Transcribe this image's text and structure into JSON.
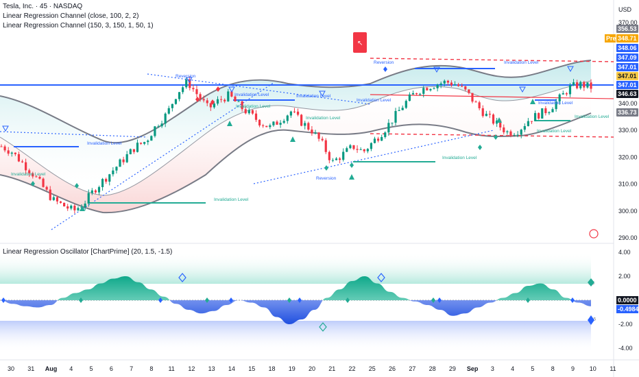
{
  "header": {
    "symbol_line": "Tesla, Inc. · 45 · NASDAQ",
    "indicator_1": "Linear Regression Channel (close, 100, 2, 2)",
    "indicator_2": "Linear Regression Channel (150, 3, 150, 1, 50, 1)"
  },
  "currency": "USD",
  "oscillator_title": "Linear Regression Oscillator [ChartPrime] (20, 1.5, -1.5)",
  "colors": {
    "up": "#089981",
    "down": "#f23645",
    "teal": "#22ab94",
    "blue": "#2962ff",
    "red_line": "#f23645",
    "grey_band": "#787b86"
  },
  "chart_data": [
    {
      "type": "candlestick",
      "ylim": [
        290,
        370
      ],
      "y_ticks": [
        290,
        300,
        310,
        320,
        330,
        340,
        350,
        360,
        370
      ],
      "y_tick_labels": [
        "290.00",
        "300.00",
        "310.00",
        "320.00",
        "330.00",
        "340.00",
        "350.00",
        "360.00",
        "370.00"
      ],
      "x_tick_labels": [
        "30",
        "31",
        "Aug",
        "4",
        "5",
        "6",
        "7",
        "8",
        "11",
        "12",
        "13",
        "14",
        "15",
        "18",
        "19",
        "20",
        "21",
        "22",
        "25",
        "26",
        "27",
        "28",
        "29",
        "Sep",
        "3",
        "4",
        "5",
        "8",
        "9",
        "10",
        "11"
      ],
      "close_path": [
        324,
        322,
        318,
        314,
        309,
        304,
        302,
        300,
        303,
        308,
        312,
        316,
        320,
        324,
        326,
        332,
        336,
        344,
        348,
        343,
        338,
        341,
        343,
        339,
        336,
        333,
        331,
        334,
        337,
        333,
        330,
        325,
        318,
        321,
        324,
        322,
        326,
        330,
        335,
        340,
        344,
        346,
        347,
        348,
        347,
        344,
        339,
        335,
        332,
        329,
        330,
        334,
        336,
        338,
        342,
        346,
        347,
        346
      ],
      "price_tags": [
        {
          "label": "356.53",
          "value": 356.53,
          "color": "#787b86"
        },
        {
          "label": "348.71",
          "value": 348.71,
          "color": "#f7a600",
          "prefix": "Pre"
        },
        {
          "label": "348.06",
          "value": 348.06,
          "color": "#2962ff"
        },
        {
          "label": "347.09",
          "value": 347.09,
          "color": "#2962ff"
        },
        {
          "label": "347.01",
          "value": 347.01,
          "color": "#2962ff"
        },
        {
          "label": "347.01",
          "value": 346.5,
          "color": "#f7c948"
        },
        {
          "label": "347.01",
          "value": 345.9,
          "color": "#2962ff"
        },
        {
          "label": "346.63",
          "value": 344.0,
          "color": "#131722"
        },
        {
          "label": "336.73",
          "value": 336.73,
          "color": "#787b86"
        }
      ],
      "annotations": [
        "Reversion",
        "Reversion",
        "Reversion",
        "Invalidation Level"
      ]
    },
    {
      "type": "area",
      "title": "Linear Regression Oscillator [ChartPrime] (20, 1.5, -1.5)",
      "ylim": [
        -4,
        4
      ],
      "y_ticks": [
        4,
        2,
        0,
        -2,
        -4
      ],
      "y_tick_labels": [
        "4.00",
        "2.00",
        "0.0000",
        "-2.00",
        "-4.00"
      ],
      "current_values": [
        "0.0000",
        "-0.4984"
      ],
      "thresholds": [
        1.5,
        -1.5
      ],
      "threshold_labels": [
        "1.5",
        "-1.5"
      ],
      "values": [
        0.0,
        -0.3,
        -0.5,
        -0.6,
        -0.4,
        0.2,
        0.6,
        0.9,
        1.4,
        1.8,
        2.0,
        1.5,
        0.9,
        0.3,
        -0.3,
        -0.8,
        -1.1,
        -0.9,
        -0.4,
        0.0,
        -0.2,
        -0.6,
        -1.4,
        -2.0,
        -1.6,
        -0.8,
        0.2,
        0.9,
        1.6,
        2.0,
        1.4,
        0.7,
        0.2,
        -0.1,
        -0.4,
        -0.8,
        -1.3,
        -1.1,
        -0.6,
        -0.2,
        0.2,
        0.6,
        1.2,
        1.4,
        0.9,
        0.2,
        -0.2,
        -0.5
      ]
    }
  ]
}
